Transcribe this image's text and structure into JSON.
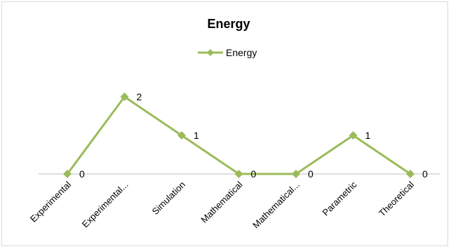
{
  "chart_data": {
    "type": "line",
    "title": "Energy",
    "categories": [
      "Experimental",
      "Experimental...",
      "Simulation",
      "Mathematical",
      "Mathematical...",
      "Parametric",
      "Theoretical"
    ],
    "series": [
      {
        "name": "Energy",
        "values": [
          0,
          2,
          1,
          0,
          0,
          1,
          0
        ]
      }
    ],
    "data_labels": [
      "0",
      "2",
      "1",
      "0",
      "0",
      "1",
      "0"
    ],
    "xlabel": "",
    "ylabel": "",
    "ylim": [
      0,
      2
    ],
    "grid": false,
    "legend_position": "top",
    "series_color": "#9bbb59",
    "axis_color": "#bfbfbf"
  }
}
